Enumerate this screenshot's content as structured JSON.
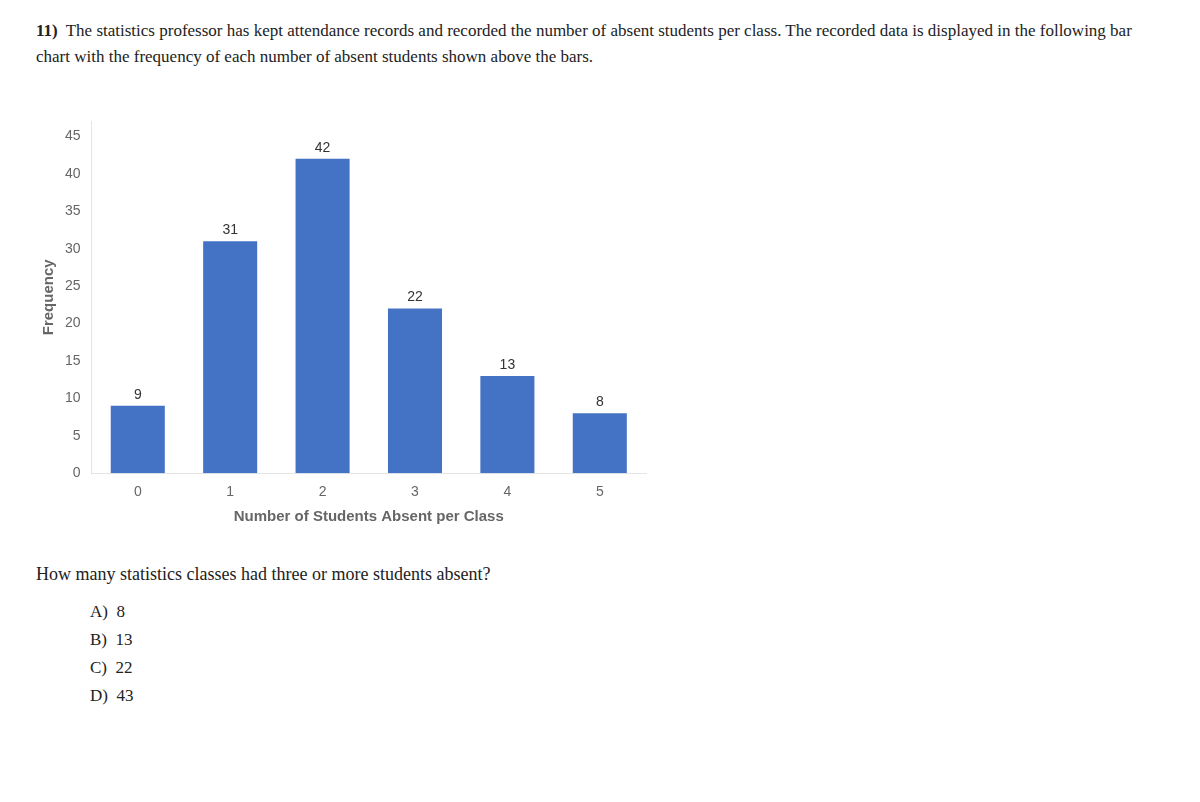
{
  "chart_data": {
    "type": "bar",
    "title": "11) The statistics professor has kept attendance records and recorded the number of absent students per class. The recorded data is displayed in the following bar chart with the frequency of each number of absent students shown above the bars.",
    "categories": [
      0,
      1,
      2,
      3,
      4,
      5
    ],
    "values": [
      9,
      31,
      42,
      22,
      13,
      8
    ],
    "color": "#4472C4",
    "x_label": "Number of Students Absent per Class",
    "y_label": "Frequency",
    "ylim": [
      0,
      47
    ],
    "yticks": [
      0,
      5,
      10,
      15,
      20,
      25,
      30,
      35,
      40,
      45
    ],
    "grid": false,
    "data_labels": true,
    "annotations": [
      "How many statistics classes had three or more students absent?",
      "A)  8",
      "B)  13",
      "C)  22",
      "D)  43"
    ]
  }
}
